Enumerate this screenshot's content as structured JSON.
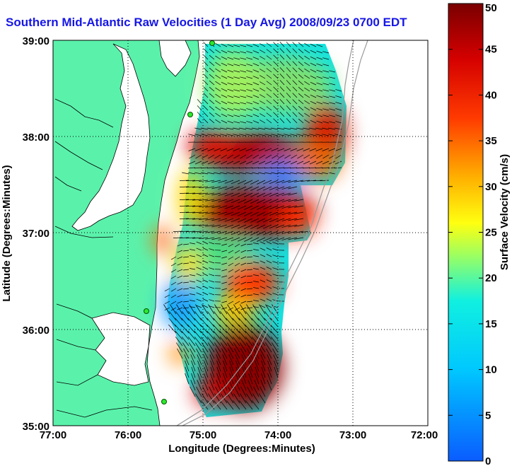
{
  "title": "Southern Mid-Atlantic Raw Velocities (1 Day Avg) 2008/09/23 0700 EDT",
  "map": {
    "xlabel": "Longitude (Degrees:Minutes)",
    "ylabel": "Latitude (Degrees:Minutes)",
    "x_ticks": [
      "77:00",
      "76:00",
      "75:00",
      "74:00",
      "73:00",
      "72:00"
    ],
    "y_ticks": [
      "39:00",
      "38:00",
      "37:00",
      "36:00",
      "35:00"
    ],
    "land_color": "#5af2ab",
    "water_color": "#ffffff"
  },
  "colorbar": {
    "label": "Surface Velocity (cm/s)",
    "ticks": [
      "0",
      "5",
      "10",
      "15",
      "20",
      "25",
      "30",
      "35",
      "40",
      "45",
      "50"
    ],
    "range": [
      0,
      50
    ],
    "colormap": "jet"
  },
  "chart_data": {
    "type": "heatmap",
    "title": "Southern Mid-Atlantic Raw Velocities (1 Day Avg) 2008/09/23 0700 EDT",
    "xlabel": "Longitude (Degrees:Minutes)",
    "ylabel": "Latitude (Degrees:Minutes)",
    "xlim": [
      -77,
      -72
    ],
    "ylim": [
      35,
      39
    ],
    "color_range": [
      0,
      50
    ],
    "color_label": "Surface Velocity (cm/s)",
    "grid": true,
    "features": [
      {
        "lon": -74.7,
        "lat": 37.9,
        "speed": 45
      },
      {
        "lon": -74.4,
        "lat": 37.2,
        "speed": 47
      },
      {
        "lon": -74.6,
        "lat": 35.6,
        "speed": 48
      },
      {
        "lon": -73.3,
        "lat": 38.0,
        "speed": 42
      },
      {
        "lon": -74.0,
        "lat": 37.6,
        "speed": 8
      },
      {
        "lon": -75.0,
        "lat": 36.1,
        "speed": 12
      },
      {
        "lon": -74.8,
        "lat": 38.6,
        "speed": 14
      }
    ],
    "stations": [
      {
        "lon": -74.85,
        "lat": 38.98
      },
      {
        "lon": -75.15,
        "lat": 38.22
      },
      {
        "lon": -75.75,
        "lat": 36.18
      },
      {
        "lon": -75.5,
        "lat": 35.25
      }
    ]
  }
}
